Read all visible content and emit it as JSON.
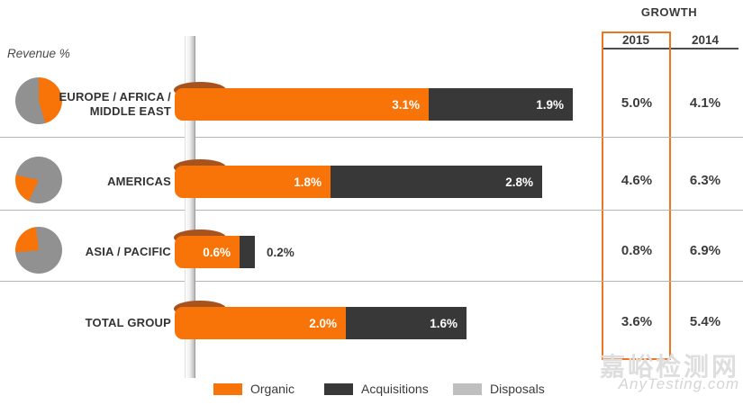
{
  "header": {
    "growth_label": "GROWTH",
    "year_cols": [
      "2015",
      "2014"
    ],
    "highlight_year": "2015"
  },
  "revenue_axis_label": "Revenue %",
  "colors": {
    "organic": "#f87408",
    "acquisitions": "#383838",
    "disposals": "#bfbfbf",
    "pie_gray": "#919191",
    "curl": "#a8521d",
    "highlight_box": "#ed7622"
  },
  "legend": {
    "items": [
      {
        "label": "Organic",
        "key": "organic"
      },
      {
        "label": "Acquisitions",
        "key": "acquisitions"
      },
      {
        "label": "Disposals",
        "key": "disposals"
      }
    ]
  },
  "watermark": {
    "line1": "嘉峪检测网",
    "line2": "AnyTesting.com"
  },
  "chart_data": {
    "type": "bar",
    "orientation": "horizontal",
    "stacked": true,
    "unit": "%",
    "series": [
      "Organic",
      "Acquisitions",
      "Disposals"
    ],
    "categories": [
      "EUROPE / AFRICA / MIDDLE EAST",
      "AMERICAS",
      "ASIA / PACIFIC",
      "TOTAL GROUP"
    ],
    "rows": [
      {
        "label": "EUROPE / AFRICA / MIDDLE EAST",
        "organic": {
          "value": 3.1,
          "label": "3.1%"
        },
        "acquisitions": {
          "value": 1.9,
          "label": "1.9%"
        },
        "growth_2015": "5.0%",
        "growth_2014": "4.1%",
        "pie_organic_share": {
          "from_pct": 0,
          "to_pct": 45.5
        }
      },
      {
        "label": "AMERICAS",
        "organic": {
          "value": 1.8,
          "label": "1.8%"
        },
        "acquisitions": {
          "value": 2.8,
          "label": "2.8%"
        },
        "growth_2015": "4.6%",
        "growth_2014": "6.3%",
        "pie_organic_share": {
          "from_pct": 57,
          "to_pct": 78.5
        }
      },
      {
        "label": "ASIA / PACIFIC",
        "organic": {
          "value": 0.6,
          "label": "0.6%"
        },
        "acquisitions": {
          "value": 0.2,
          "label": "0.2%"
        },
        "growth_2015": "0.8%",
        "growth_2014": "6.9%",
        "pie_organic_share": {
          "from_pct": 73.5,
          "to_pct": 98
        },
        "acq_label_outside": true
      },
      {
        "label": "TOTAL GROUP",
        "organic": {
          "value": 2.0,
          "label": "2.0%"
        },
        "acquisitions": {
          "value": 1.6,
          "label": "1.6%"
        },
        "growth_2015": "3.6%",
        "growth_2014": "5.4%",
        "pie_organic_share": null
      }
    ]
  }
}
